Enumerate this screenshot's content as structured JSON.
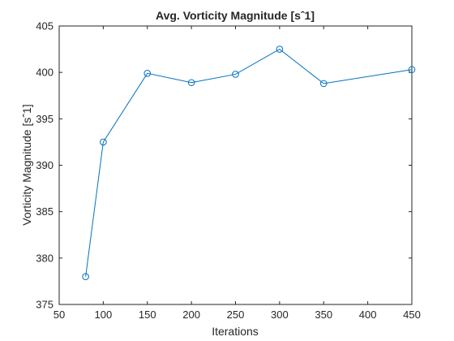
{
  "chart_data": {
    "type": "line",
    "title": "Avg. Vorticity Magnitude [sˆ1]",
    "xlabel": "Iterations",
    "ylabel": "Vorticity Magnitude [sˆ1]",
    "xlim": [
      50,
      450
    ],
    "ylim": [
      375,
      405
    ],
    "xticks": [
      50,
      100,
      150,
      200,
      250,
      300,
      350,
      400,
      450
    ],
    "yticks": [
      375,
      380,
      385,
      390,
      395,
      400,
      405
    ],
    "grid": false,
    "marker": "circle",
    "series": [
      {
        "color": "#0072bd",
        "x": [
          80,
          100,
          150,
          200,
          250,
          300,
          350,
          450
        ],
        "y": [
          378.0,
          392.5,
          399.9,
          398.9,
          399.8,
          402.5,
          398.8,
          400.3
        ]
      }
    ]
  }
}
